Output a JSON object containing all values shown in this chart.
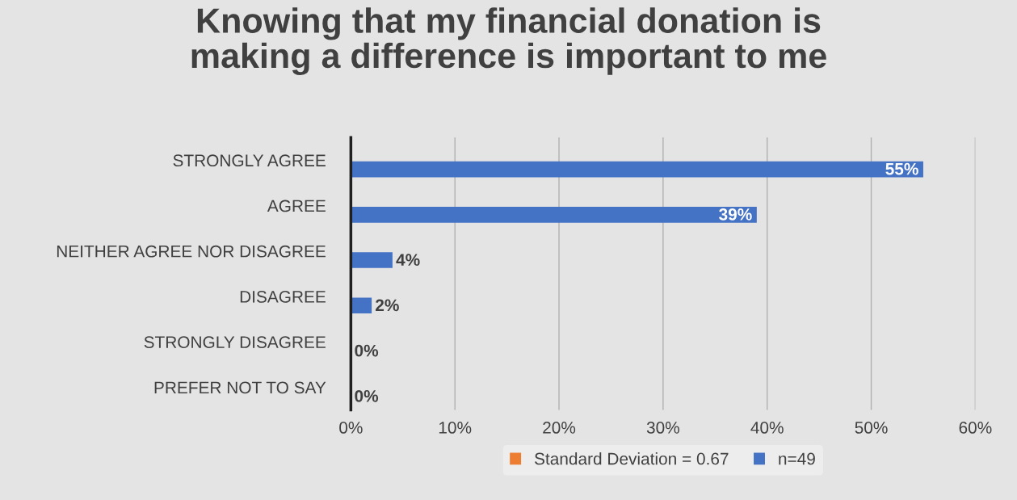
{
  "chart_data": {
    "type": "bar",
    "orientation": "horizontal",
    "title": "Knowing that my financial donation is\nmaking a difference is important to me",
    "categories": [
      "STRONGLY AGREE",
      "AGREE",
      "NEITHER AGREE NOR DISAGREE",
      "DISAGREE",
      "STRONGLY DISAGREE",
      "PREFER NOT TO SAY"
    ],
    "series": [
      {
        "name": "Standard Deviation = 0.67",
        "color": "#ed7d31",
        "values": [
          null,
          null,
          null,
          null,
          null,
          null
        ]
      },
      {
        "name": "n=49",
        "color": "#4472c4",
        "values": [
          55,
          39,
          4,
          2,
          0,
          0
        ],
        "value_labels": [
          "55%",
          "39%",
          "4%",
          "2%",
          "0%",
          "0%"
        ]
      }
    ],
    "xlim": [
      0,
      60
    ],
    "xticks": [
      {
        "value": 0,
        "label": "0%"
      },
      {
        "value": 10,
        "label": "10%"
      },
      {
        "value": 20,
        "label": "20%"
      },
      {
        "value": 30,
        "label": "30%"
      },
      {
        "value": 40,
        "label": "40%"
      },
      {
        "value": 50,
        "label": "50%"
      },
      {
        "value": 60,
        "label": "60%"
      }
    ],
    "grid": "x",
    "legend": "bottom"
  }
}
